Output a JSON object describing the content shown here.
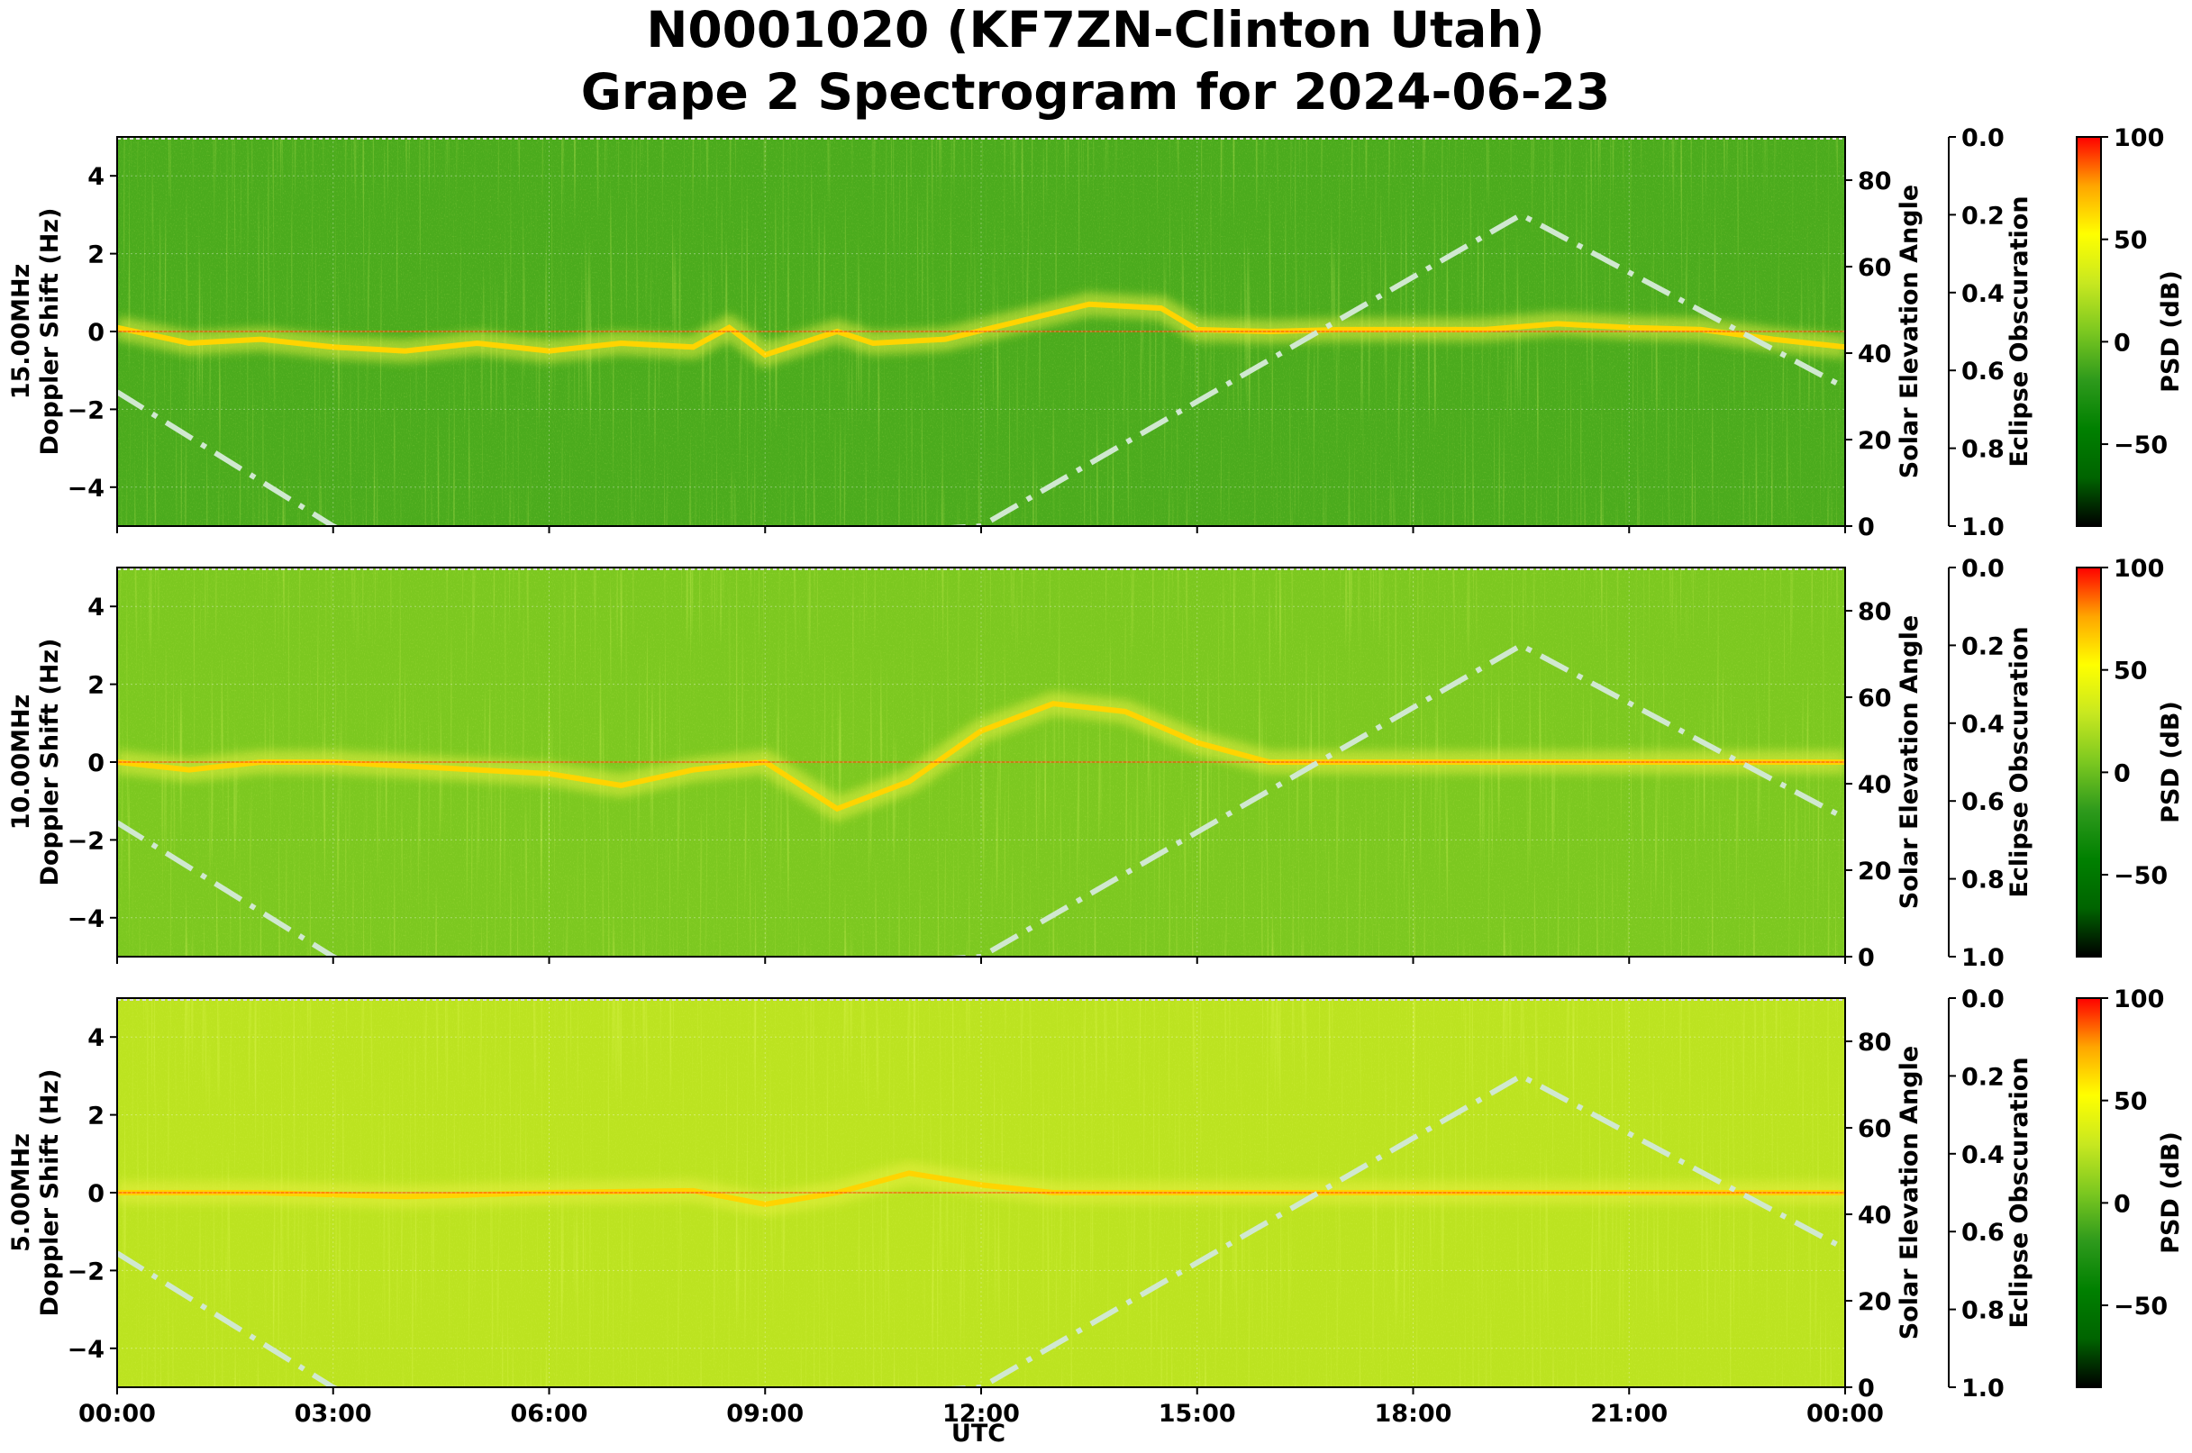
{
  "title_line1": "N0001020 (KF7ZN-Clinton Utah)",
  "title_line2": "Grape 2 Spectrogram for 2024-06-23",
  "x_axis": {
    "label": "UTC",
    "ticks": [
      "00:00",
      "03:00",
      "06:00",
      "09:00",
      "12:00",
      "15:00",
      "18:00",
      "21:00",
      "00:00"
    ]
  },
  "right_axis_label": "Solar Elevation Angle",
  "obscuration_axis_label": "Eclipse Obscuration",
  "colorbar_label": "PSD (dB)",
  "colors": {
    "psd_colormap": [
      "#000000",
      "#006400",
      "#008000",
      "#2e9a1c",
      "#7cc820",
      "#c8e820",
      "#ffff00",
      "#ffa500",
      "#ff0000"
    ],
    "solar_curve": "#d0e8d0"
  },
  "chart_data": [
    {
      "type": "heatmap",
      "frequency_label": "15.00MHz",
      "ylabel": "Doppler Shift (Hz)",
      "xlabel": "",
      "x_range_hours": [
        0,
        24
      ],
      "ylim": [
        -5,
        5
      ],
      "yticks": [
        -4,
        -2,
        0,
        2,
        4
      ],
      "right_ylim": [
        0,
        90
      ],
      "right_yticks": [
        0,
        20,
        40,
        60,
        80
      ],
      "obscuration_ticks": [
        0.0,
        0.2,
        0.4,
        0.6,
        0.8,
        1.0
      ],
      "colorbar_range": [
        -90,
        100
      ],
      "colorbar_ticks": [
        -50,
        0,
        50,
        100
      ],
      "background_psd_db": -10,
      "doppler_trace": [
        [
          0,
          0.1
        ],
        [
          0.5,
          -0.1
        ],
        [
          1,
          -0.3
        ],
        [
          2,
          -0.2
        ],
        [
          3,
          -0.4
        ],
        [
          4,
          -0.5
        ],
        [
          5,
          -0.3
        ],
        [
          6,
          -0.5
        ],
        [
          7,
          -0.3
        ],
        [
          8,
          -0.4
        ],
        [
          8.5,
          0.1
        ],
        [
          9,
          -0.6
        ],
        [
          9.5,
          -0.3
        ],
        [
          10,
          0
        ],
        [
          10.5,
          -0.3
        ],
        [
          11.5,
          -0.2
        ],
        [
          13.5,
          0.7
        ],
        [
          14.5,
          0.6
        ],
        [
          15,
          0.05
        ],
        [
          16,
          0
        ],
        [
          17,
          0.05
        ],
        [
          18,
          0.05
        ],
        [
          19,
          0.05
        ],
        [
          20,
          0.2
        ],
        [
          21,
          0.1
        ],
        [
          22,
          0.05
        ],
        [
          23,
          -0.2
        ],
        [
          24,
          -0.4
        ]
      ],
      "solar_elevation": {
        "x": [
          0,
          3,
          4,
          12,
          19.5,
          24
        ],
        "y": [
          31,
          0,
          -8,
          0,
          72,
          32
        ]
      }
    },
    {
      "type": "heatmap",
      "frequency_label": "10.00MHz",
      "ylabel": "Doppler Shift (Hz)",
      "xlabel": "",
      "x_range_hours": [
        0,
        24
      ],
      "ylim": [
        -5,
        5
      ],
      "yticks": [
        -4,
        -2,
        0,
        2,
        4
      ],
      "right_ylim": [
        0,
        90
      ],
      "right_yticks": [
        0,
        20,
        40,
        60,
        80
      ],
      "obscuration_ticks": [
        0.0,
        0.2,
        0.4,
        0.6,
        0.8,
        1.0
      ],
      "colorbar_range": [
        -90,
        100
      ],
      "colorbar_ticks": [
        -50,
        0,
        50,
        100
      ],
      "background_psd_db": 5,
      "doppler_trace": [
        [
          0,
          0
        ],
        [
          1,
          -0.2
        ],
        [
          2,
          0
        ],
        [
          3,
          0
        ],
        [
          4,
          -0.1
        ],
        [
          5,
          -0.2
        ],
        [
          6,
          -0.3
        ],
        [
          7,
          -0.6
        ],
        [
          8,
          -0.2
        ],
        [
          9,
          0
        ],
        [
          10,
          -1.2
        ],
        [
          11,
          -0.5
        ],
        [
          12,
          0.8
        ],
        [
          13,
          1.5
        ],
        [
          14,
          1.3
        ],
        [
          15,
          0.5
        ],
        [
          16,
          0
        ],
        [
          18,
          0
        ],
        [
          20,
          0
        ],
        [
          22,
          0
        ],
        [
          24,
          0
        ]
      ],
      "solar_elevation": {
        "x": [
          0,
          3,
          4,
          12,
          19.5,
          24
        ],
        "y": [
          31,
          0,
          -8,
          0,
          72,
          32
        ]
      }
    },
    {
      "type": "heatmap",
      "frequency_label": "5.00MHz",
      "ylabel": "Doppler Shift (Hz)",
      "xlabel": "UTC",
      "x_range_hours": [
        0,
        24
      ],
      "ylim": [
        -5,
        5
      ],
      "yticks": [
        -4,
        -2,
        0,
        2,
        4
      ],
      "right_ylim": [
        0,
        90
      ],
      "right_yticks": [
        0,
        20,
        40,
        60,
        80
      ],
      "obscuration_ticks": [
        0.0,
        0.2,
        0.4,
        0.6,
        0.8,
        1.0
      ],
      "colorbar_range": [
        -90,
        100
      ],
      "colorbar_ticks": [
        -50,
        0,
        50,
        100
      ],
      "background_psd_db": 25,
      "doppler_trace": [
        [
          0,
          0
        ],
        [
          2,
          0
        ],
        [
          4,
          -0.1
        ],
        [
          6,
          0
        ],
        [
          8,
          0.05
        ],
        [
          9,
          -0.3
        ],
        [
          10,
          0
        ],
        [
          11,
          0.5
        ],
        [
          12,
          0.2
        ],
        [
          13,
          0
        ],
        [
          16,
          0
        ],
        [
          20,
          0
        ],
        [
          24,
          0
        ]
      ],
      "solar_elevation": {
        "x": [
          0,
          3,
          4,
          12,
          19.5,
          24
        ],
        "y": [
          31,
          0,
          -8,
          0,
          72,
          32
        ]
      }
    }
  ]
}
